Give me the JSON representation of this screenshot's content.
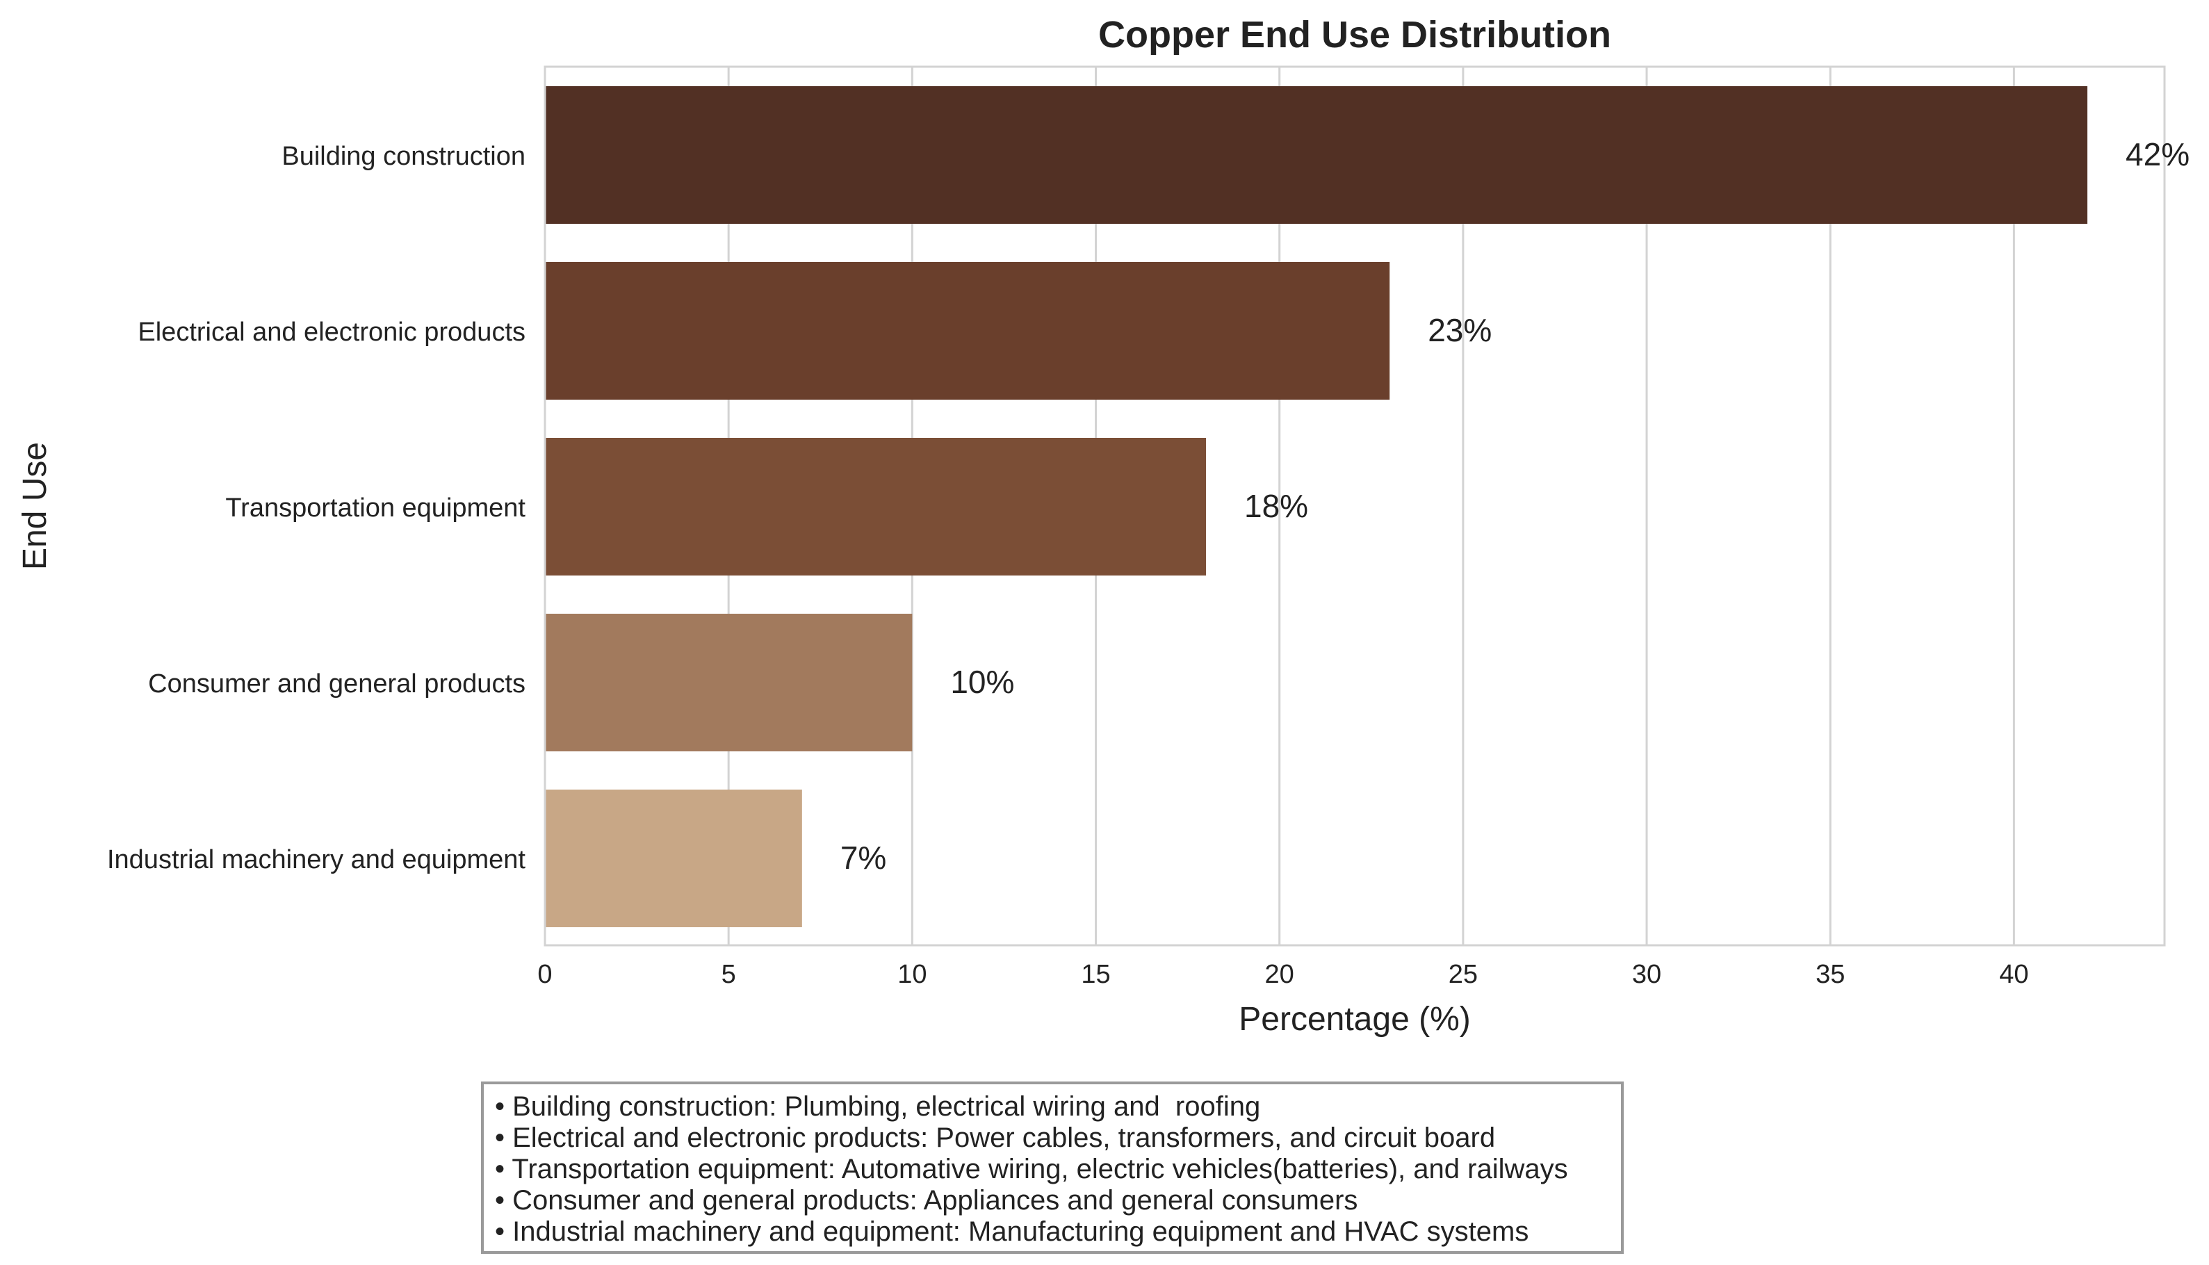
{
  "chart_data": {
    "type": "bar",
    "orientation": "horizontal",
    "title": "Copper End Use Distribution",
    "xlabel": "Percentage (%)",
    "ylabel": "End Use",
    "categories": [
      "Building construction",
      "Electrical and electronic products",
      "Transportation equipment",
      "Consumer and general products",
      "Industrial machinery and equipment"
    ],
    "values": [
      42,
      23,
      18,
      10,
      7
    ],
    "value_labels": [
      "42%",
      "23%",
      "18%",
      "10%",
      "7%"
    ],
    "bar_colors": [
      "#523024",
      "#6a3f2c",
      "#7b4e36",
      "#a27a5d",
      "#c8a786"
    ],
    "xlim": [
      0,
      44.1
    ],
    "xticks": [
      0,
      5,
      10,
      15,
      20,
      25,
      30,
      35,
      40
    ],
    "xtick_labels": [
      "0",
      "5",
      "10",
      "15",
      "20",
      "25",
      "30",
      "35",
      "40"
    ],
    "grid": "vertical",
    "grid_color": "#d3d3d3",
    "frame_color": "#d3d3d3",
    "text_color": "#222222"
  },
  "notes": [
    "• Building construction: Plumbing, electrical wiring and  roofing",
    "• Electrical and electronic products: Power cables, transformers, and circuit board",
    "• Transportation equipment: Automative wiring, electric vehicles(batteries), and railways",
    "• Consumer and general products: Appliances and general consumers",
    "• Industrial machinery and equipment: Manufacturing equipment and HVAC systems"
  ]
}
